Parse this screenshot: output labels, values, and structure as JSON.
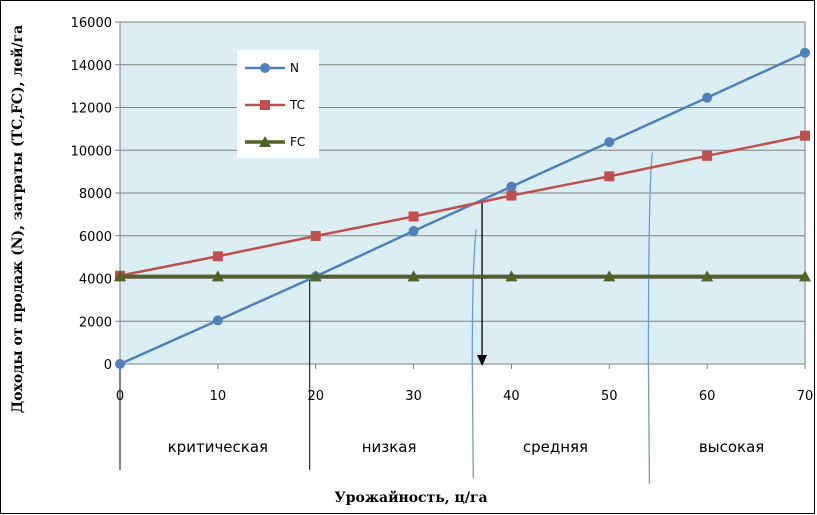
{
  "chart_data": {
    "type": "line",
    "xlabel": "Урожайность, ц/га",
    "ylabel": "Доходы от продаж (N), затраты (TC,FC), лей/га",
    "xlim": [
      0,
      70
    ],
    "ylim": [
      0,
      16000
    ],
    "x_ticks": [
      "0",
      "10",
      "20",
      "30",
      "40",
      "50",
      "60",
      "70"
    ],
    "y_ticks": [
      "0",
      "2000",
      "4000",
      "6000",
      "8000",
      "10000",
      "12000",
      "14000",
      "16000"
    ],
    "x": [
      0,
      10,
      20,
      30,
      40,
      50,
      60,
      70
    ],
    "series": [
      {
        "name": "N",
        "color": "#4f81bd",
        "marker": "circle",
        "values": [
          0,
          2040,
          4100,
          6220,
          8300,
          10380,
          12460,
          14560
        ]
      },
      {
        "name": "TC",
        "color": "#c0504d",
        "marker": "square",
        "values": [
          4130,
          5040,
          5990,
          6900,
          7880,
          8780,
          9740,
          10680
        ]
      },
      {
        "name": "FC",
        "color": "#4f6228",
        "marker": "triangle",
        "values": [
          4100,
          4100,
          4100,
          4100,
          4100,
          4100,
          4100,
          4100
        ]
      }
    ],
    "plot_background": "#dbeef3",
    "grid": "horizontal",
    "legend_position": "top-left",
    "zones": [
      {
        "label": "критическая",
        "x_center": 10
      },
      {
        "label": "низкая",
        "x_center": 27.5
      },
      {
        "label": "средняя",
        "x_center": 44.5
      },
      {
        "label": "высокая",
        "x_center": 62.5
      }
    ],
    "black_dividers_x": [
      0,
      20
    ],
    "blue_dividers_x": [
      36,
      54
    ],
    "break_even_arrow_x": 37
  }
}
